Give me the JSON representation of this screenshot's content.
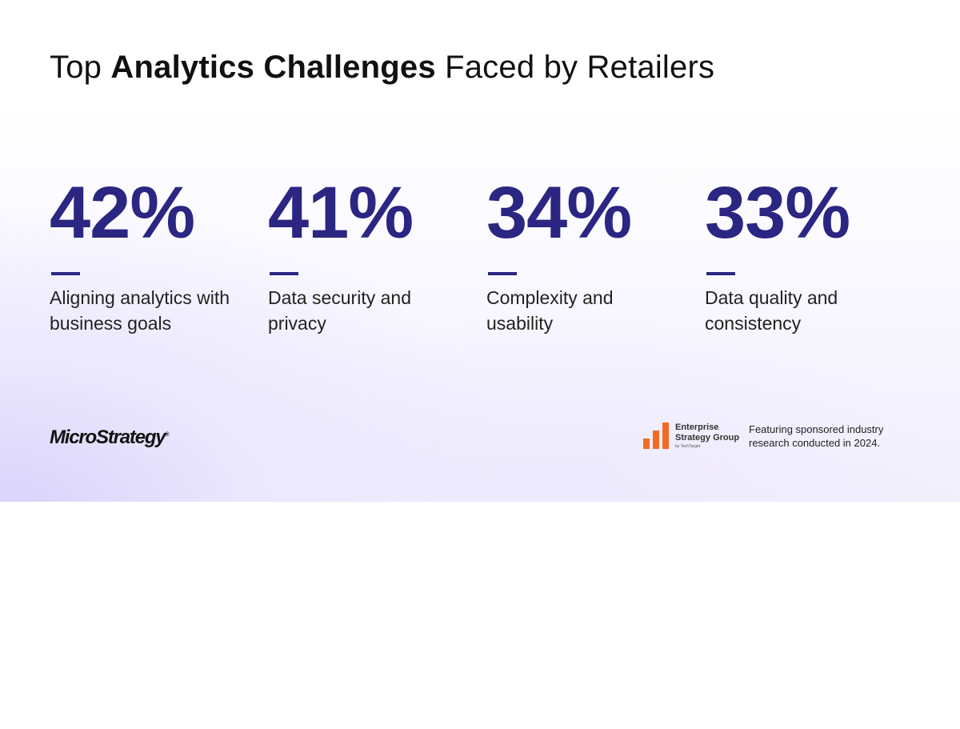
{
  "title": {
    "prefix": "Top ",
    "bold": "Analytics Challenges",
    "suffix": " Faced by Retailers"
  },
  "stats": [
    {
      "value": "42%",
      "label": "Aligning analytics with business goals"
    },
    {
      "value": "41%",
      "label": "Data security and privacy"
    },
    {
      "value": "34%",
      "label": "Complexity and usability"
    },
    {
      "value": "33%",
      "label": "Data quality and consistency"
    }
  ],
  "footer": {
    "brand_logo_text": "MicroStrategy",
    "partner_logo": {
      "line1": "Enterprise",
      "line2": "Strategy Group",
      "byline": "by TechTarget"
    },
    "caption": "Featuring sponsored industry research conducted in 2024."
  },
  "colors": {
    "accent": "#2a2682",
    "partner_orange": "#f26b21",
    "text": "#111111"
  }
}
